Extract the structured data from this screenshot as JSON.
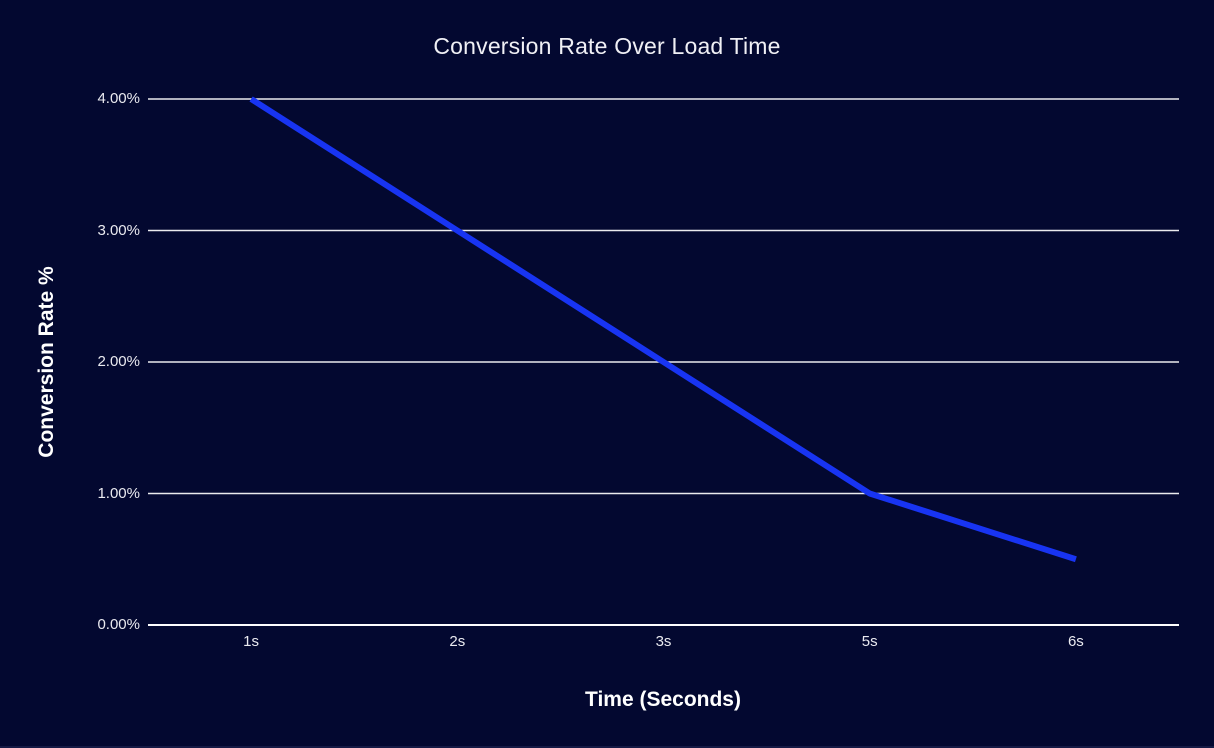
{
  "chart_data": {
    "type": "line",
    "title": "Conversion Rate Over Load Time",
    "xlabel": "Time (Seconds)",
    "ylabel": "Conversion Rate %",
    "categories": [
      "1s",
      "2s",
      "3s",
      "5s",
      "6s"
    ],
    "values": [
      4.0,
      3.0,
      2.0,
      1.0,
      0.5
    ],
    "y_ticks": [
      "0.00%",
      "1.00%",
      "2.00%",
      "3.00%",
      "4.00%"
    ],
    "ylim": [
      0,
      4
    ],
    "grid": true,
    "legend": false
  },
  "colors": {
    "background": "#030830",
    "line": "#1834f2",
    "grid": "#ffffff",
    "axis": "#ffffff",
    "text": "#ffffff"
  }
}
